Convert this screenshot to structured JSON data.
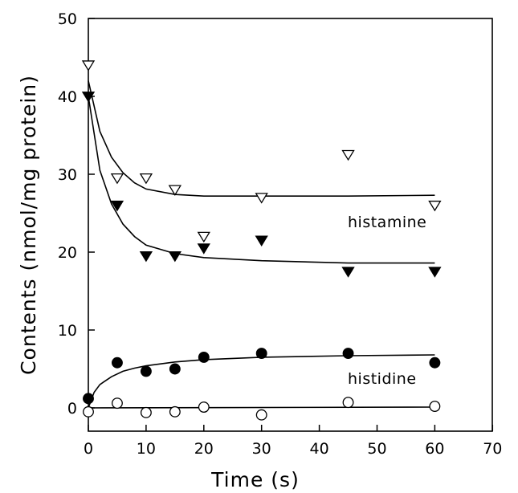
{
  "chart_data": {
    "type": "scatter",
    "title": "",
    "xlabel": "Time (s)",
    "ylabel": "Contents (nmol/mg protein)",
    "xlim": [
      0,
      70
    ],
    "ylim": [
      -3,
      50
    ],
    "xticks": [
      0,
      10,
      20,
      30,
      40,
      50,
      60,
      70
    ],
    "yticks": [
      0,
      10,
      20,
      30,
      40,
      50
    ],
    "grid": false,
    "legend": "none",
    "annotations": [
      {
        "text": "histamine",
        "x": 45,
        "y": 24
      },
      {
        "text": "histidine",
        "x": 45,
        "y": 3.6
      }
    ],
    "series": [
      {
        "marker": "triangle-down-open",
        "x": [
          0,
          5,
          10,
          15,
          20,
          30,
          45,
          60
        ],
        "y": [
          44,
          29.5,
          29.5,
          28,
          22,
          27,
          32.5,
          26
        ]
      },
      {
        "marker": "triangle-down-filled",
        "x": [
          0,
          5,
          10,
          15,
          20,
          30,
          45,
          60
        ],
        "y": [
          40,
          26,
          19.5,
          19.5,
          20.5,
          21.5,
          17.5,
          17.5
        ]
      },
      {
        "marker": "circle-filled",
        "x": [
          0,
          5,
          10,
          15,
          20,
          30,
          45,
          60
        ],
        "y": [
          1.2,
          5.8,
          4.7,
          5.0,
          6.5,
          7.0,
          7.0,
          5.8
        ]
      },
      {
        "marker": "circle-open",
        "x": [
          0,
          5,
          10,
          15,
          20,
          30,
          45,
          60
        ],
        "y": [
          -0.5,
          0.6,
          -0.6,
          -0.5,
          0.1,
          -0.9,
          0.7,
          0.2
        ]
      }
    ],
    "fits": [
      {
        "x": [
          0,
          2,
          4,
          6,
          8,
          10,
          15,
          20,
          30,
          45,
          60
        ],
        "y": [
          42,
          35.5,
          32.2,
          30.2,
          28.9,
          28.1,
          27.4,
          27.2,
          27.2,
          27.2,
          27.3
        ]
      },
      {
        "x": [
          0,
          2,
          4,
          6,
          8,
          10,
          15,
          20,
          30,
          45,
          60
        ],
        "y": [
          40,
          30.5,
          26.2,
          23.6,
          22,
          20.9,
          19.8,
          19.3,
          18.9,
          18.6,
          18.6
        ]
      },
      {
        "x": [
          0,
          1,
          2,
          4,
          6,
          8,
          10,
          15,
          20,
          30,
          45,
          60
        ],
        "y": [
          0,
          2.0,
          3.0,
          4.0,
          4.7,
          5.1,
          5.4,
          5.9,
          6.2,
          6.5,
          6.7,
          6.8
        ]
      },
      {
        "x": [
          0,
          60
        ],
        "y": [
          0,
          0.1
        ]
      }
    ]
  }
}
